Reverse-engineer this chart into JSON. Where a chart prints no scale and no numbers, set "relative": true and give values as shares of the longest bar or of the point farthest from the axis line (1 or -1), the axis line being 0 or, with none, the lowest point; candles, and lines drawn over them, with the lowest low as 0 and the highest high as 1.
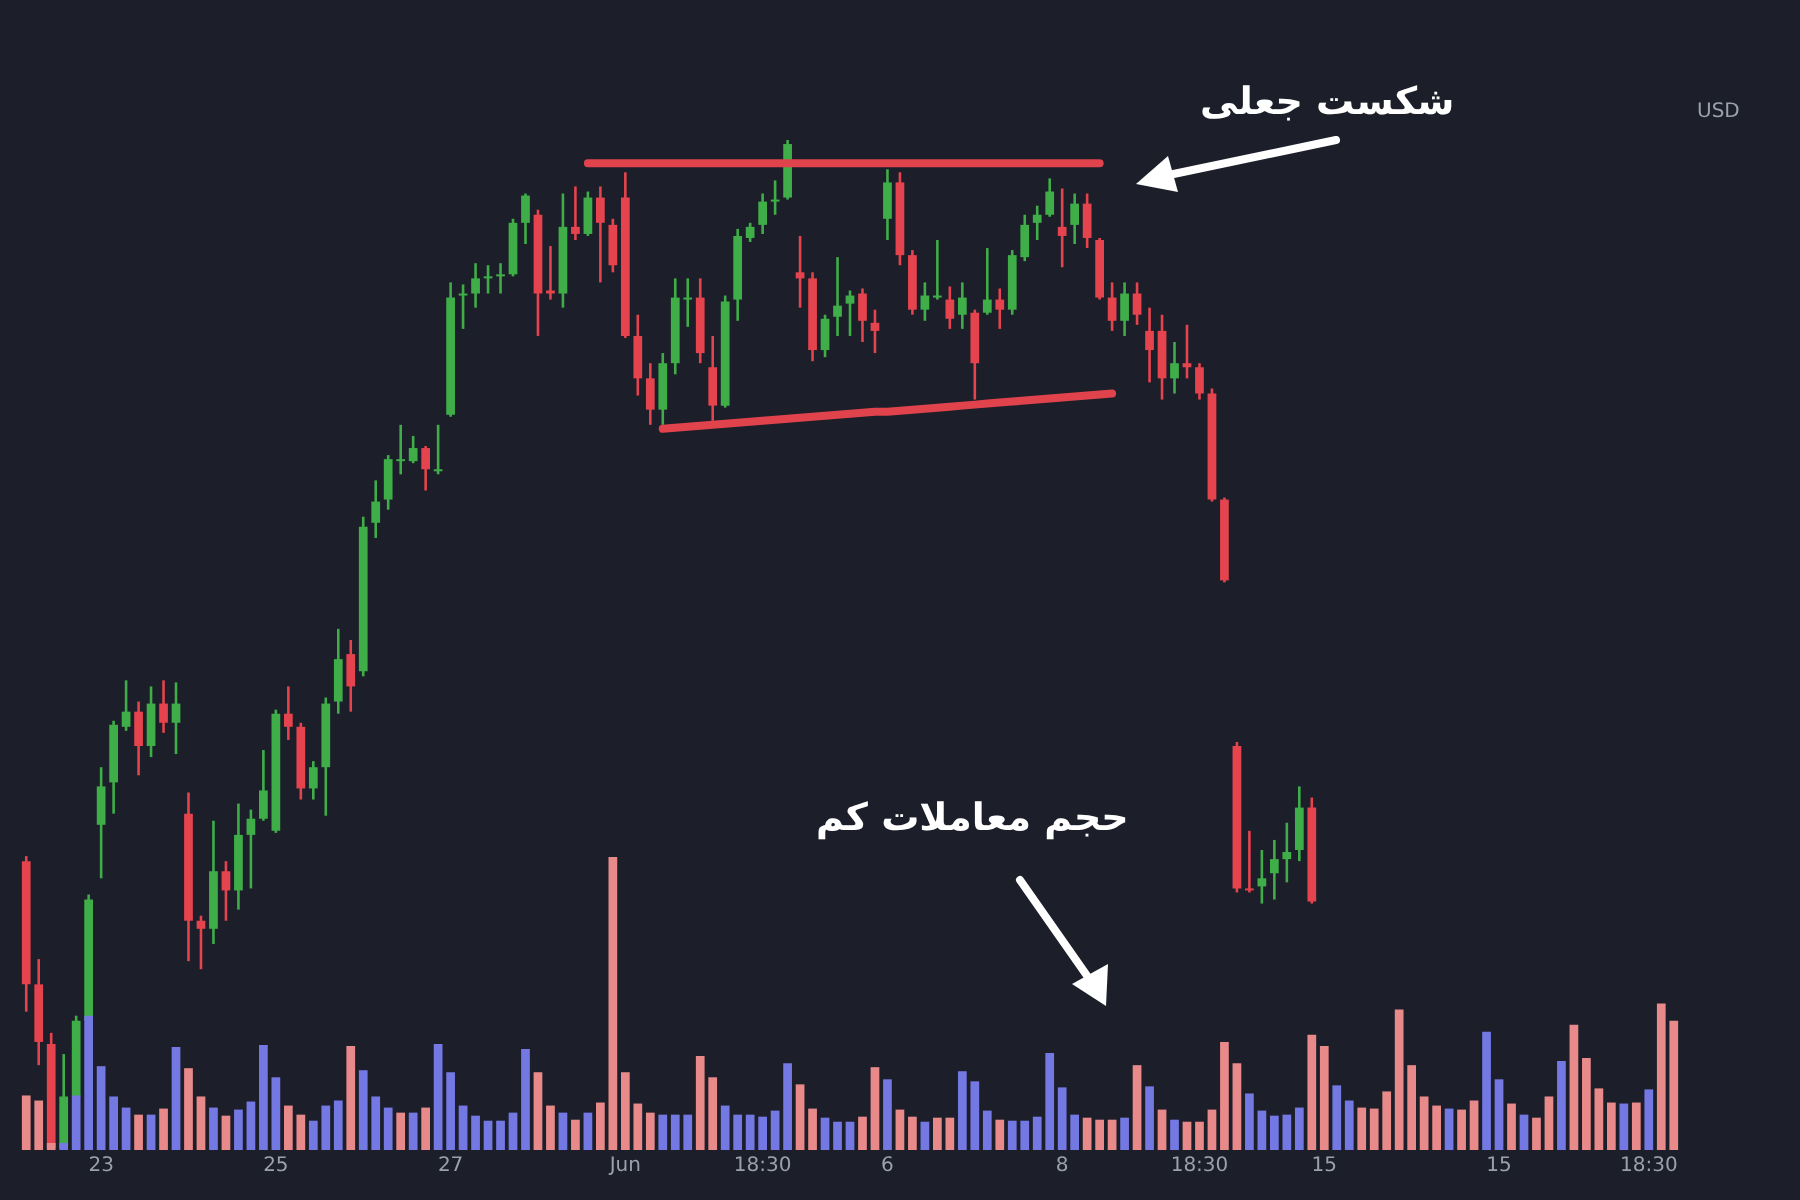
{
  "chart_data": {
    "type": "candlestick",
    "relative": true,
    "ylabel": "USD",
    "categories": [
      null,
      null,
      null,
      null,
      null,
      null,
      "23",
      null,
      null,
      null,
      null,
      null,
      null,
      null,
      null,
      null,
      null,
      null,
      null,
      null,
      "25",
      null,
      null,
      null,
      null,
      null,
      null,
      null,
      null,
      null,
      null,
      null,
      null,
      null,
      "27",
      null,
      null,
      null,
      null,
      null,
      null,
      null,
      null,
      null,
      null,
      null,
      null,
      null,
      "Jun",
      null,
      null,
      null,
      null,
      null,
      null,
      null,
      null,
      null,
      null,
      "18:30",
      null,
      null,
      null,
      null,
      null,
      null,
      null,
      null,
      null,
      "6",
      null,
      null,
      null,
      null,
      null,
      null,
      null,
      null,
      null,
      null,
      null,
      null,
      null,
      "8",
      null,
      null,
      null,
      null,
      null,
      null,
      null,
      null,
      null,
      null,
      "18:30",
      null,
      null,
      null,
      null,
      null,
      null,
      null,
      null,
      null,
      "15",
      null,
      null,
      null,
      null,
      null,
      null,
      null,
      null,
      null,
      null,
      null,
      null,
      null,
      "15",
      null,
      null,
      null,
      null,
      null,
      null,
      null,
      null,
      null,
      null,
      null,
      "18:30",
      null,
      null
    ],
    "ohlc": [
      [
        0.286,
        0.291,
        0.137,
        0.164
      ],
      [
        0.164,
        0.189,
        0.084,
        0.107
      ],
      [
        0.105,
        0.116,
        0,
        0.002
      ],
      [
        0.002,
        0.095,
        0,
        0.053
      ],
      [
        0.053,
        0.133,
        0.048,
        0.128
      ],
      [
        0.128,
        0.253,
        0.126,
        0.248
      ],
      [
        0.322,
        0.379,
        0.269,
        0.36
      ],
      [
        0.364,
        0.425,
        0.333,
        0.421
      ],
      [
        0.419,
        0.465,
        0.415,
        0.434
      ],
      [
        0.434,
        0.444,
        0.371,
        0.4
      ],
      [
        0.4,
        0.459,
        0.389,
        0.442
      ],
      [
        0.442,
        0.465,
        0.413,
        0.423
      ],
      [
        0.423,
        0.463,
        0.392,
        0.442
      ],
      [
        0.333,
        0.354,
        0.187,
        0.227
      ],
      [
        0.227,
        0.232,
        0.179,
        0.219
      ],
      [
        0.219,
        0.326,
        0.204,
        0.276
      ],
      [
        0.276,
        0.286,
        0.227,
        0.257
      ],
      [
        0.257,
        0.343,
        0.238,
        0.312
      ],
      [
        0.312,
        0.337,
        0.259,
        0.328
      ],
      [
        0.328,
        0.396,
        0.326,
        0.356
      ],
      [
        0.316,
        0.436,
        0.314,
        0.432
      ],
      [
        0.432,
        0.459,
        0.406,
        0.419
      ],
      [
        0.419,
        0.423,
        0.347,
        0.358
      ],
      [
        0.358,
        0.385,
        0.347,
        0.379
      ],
      [
        0.379,
        0.448,
        0.331,
        0.442
      ],
      [
        0.444,
        0.516,
        0.432,
        0.486
      ],
      [
        0.491,
        0.505,
        0.434,
        0.459
      ],
      [
        0.474,
        0.627,
        0.469,
        0.617
      ],
      [
        0.621,
        0.663,
        0.606,
        0.642
      ],
      [
        0.644,
        0.688,
        0.634,
        0.684
      ],
      [
        0.682,
        0.718,
        0.669,
        0.684
      ],
      [
        0.682,
        0.707,
        0.68,
        0.695
      ],
      [
        0.695,
        0.697,
        0.653,
        0.674
      ],
      [
        0.672,
        0.718,
        0.669,
        0.674
      ],
      [
        0.728,
        0.859,
        0.726,
        0.844
      ],
      [
        0.846,
        0.857,
        0.813,
        0.848
      ],
      [
        0.848,
        0.878,
        0.834,
        0.863
      ],
      [
        0.863,
        0.876,
        0.848,
        0.865
      ],
      [
        0.865,
        0.878,
        0.848,
        0.867
      ],
      [
        0.867,
        0.922,
        0.865,
        0.918
      ],
      [
        0.918,
        0.947,
        0.897,
        0.945
      ],
      [
        0.926,
        0.931,
        0.806,
        0.848
      ],
      [
        0.851,
        0.895,
        0.842,
        0.848
      ],
      [
        0.848,
        0.947,
        0.834,
        0.914
      ],
      [
        0.914,
        0.954,
        0.901,
        0.907
      ],
      [
        0.907,
        0.949,
        0.905,
        0.943
      ],
      [
        0.943,
        0.954,
        0.859,
        0.918
      ],
      [
        0.916,
        0.922,
        0.869,
        0.876
      ],
      [
        0.943,
        0.968,
        0.804,
        0.806
      ],
      [
        0.806,
        0.827,
        0.747,
        0.764
      ],
      [
        0.764,
        0.779,
        0.718,
        0.733
      ],
      [
        0.733,
        0.789,
        0.718,
        0.779
      ],
      [
        0.779,
        0.863,
        0.768,
        0.844
      ],
      [
        0.842,
        0.863,
        0.815,
        0.844
      ],
      [
        0.844,
        0.863,
        0.779,
        0.789
      ],
      [
        0.775,
        0.806,
        0.722,
        0.737
      ],
      [
        0.737,
        0.846,
        0.735,
        0.84
      ],
      [
        0.842,
        0.912,
        0.821,
        0.905
      ],
      [
        0.903,
        0.918,
        0.899,
        0.914
      ],
      [
        0.916,
        0.947,
        0.907,
        0.939
      ],
      [
        0.939,
        0.96,
        0.926,
        0.941
      ],
      [
        0.943,
        1,
        0.941,
        0.996
      ],
      [
        0.869,
        0.905,
        0.834,
        0.863
      ],
      [
        0.863,
        0.869,
        0.781,
        0.792
      ],
      [
        0.792,
        0.827,
        0.785,
        0.823
      ],
      [
        0.825,
        0.884,
        0.806,
        0.836
      ],
      [
        0.838,
        0.851,
        0.806,
        0.846
      ],
      [
        0.848,
        0.853,
        0.8,
        0.821
      ],
      [
        0.819,
        0.832,
        0.789,
        0.811
      ],
      [
        0.922,
        0.971,
        0.901,
        0.958
      ],
      [
        0.958,
        0.968,
        0.876,
        0.886
      ],
      [
        0.886,
        0.891,
        0.827,
        0.832
      ],
      [
        0.832,
        0.859,
        0.821,
        0.846
      ],
      [
        0.844,
        0.901,
        0.842,
        0.846
      ],
      [
        0.842,
        0.855,
        0.813,
        0.823
      ],
      [
        0.827,
        0.859,
        0.813,
        0.844
      ],
      [
        0.829,
        0.832,
        0.743,
        0.779
      ],
      [
        0.829,
        0.893,
        0.827,
        0.842
      ],
      [
        0.842,
        0.853,
        0.813,
        0.832
      ],
      [
        0.832,
        0.891,
        0.827,
        0.886
      ],
      [
        0.884,
        0.926,
        0.88,
        0.916
      ],
      [
        0.918,
        0.935,
        0.901,
        0.926
      ],
      [
        0.926,
        0.962,
        0.924,
        0.949
      ],
      [
        0.914,
        0.952,
        0.874,
        0.905
      ],
      [
        0.916,
        0.947,
        0.897,
        0.937
      ],
      [
        0.937,
        0.947,
        0.893,
        0.903
      ],
      [
        0.901,
        0.903,
        0.842,
        0.844
      ],
      [
        0.844,
        0.859,
        0.811,
        0.821
      ],
      [
        0.821,
        0.859,
        0.806,
        0.848
      ],
      [
        0.848,
        0.859,
        0.817,
        0.827
      ],
      [
        0.811,
        0.834,
        0.76,
        0.792
      ],
      [
        0.811,
        0.827,
        0.743,
        0.764
      ],
      [
        0.764,
        0.8,
        0.749,
        0.779
      ],
      [
        0.779,
        0.817,
        0.764,
        0.775
      ],
      [
        0.775,
        0.779,
        0.743,
        0.749
      ],
      [
        0.749,
        0.754,
        0.642,
        0.644
      ],
      [
        0.644,
        0.646,
        0.562,
        0.564
      ],
      [
        0.4,
        0.404,
        0.255,
        0.259
      ],
      [
        0.259,
        0.316,
        0.255,
        0.257
      ],
      [
        0.261,
        0.297,
        0.244,
        0.269
      ],
      [
        0.274,
        0.307,
        0.248,
        0.288
      ],
      [
        0.288,
        0.324,
        0.265,
        0.295
      ],
      [
        0.297,
        0.36,
        0.286,
        0.339
      ],
      [
        0.339,
        0.349,
        0.244,
        0.246
      ],
      null,
      null,
      null,
      null,
      null,
      null,
      null,
      null,
      null,
      null,
      null,
      null,
      null,
      null,
      null,
      null,
      null,
      null,
      null,
      null,
      null,
      null,
      null,
      null,
      null,
      null,
      null,
      null,
      null
    ],
    "colors": [
      "#e5434d",
      "#e5434d",
      "#e5434d",
      "#3fae49",
      "#3fae49",
      "#3fae49",
      "#3fae49",
      "#3fae49",
      "#3fae49",
      "#e5434d",
      "#3fae49",
      "#e5434d",
      "#3fae49",
      "#e5434d",
      "#e5434d",
      "#3fae49",
      "#e5434d",
      "#3fae49",
      "#3fae49",
      "#3fae49",
      "#3fae49",
      "#e5434d",
      "#e5434d",
      "#3fae49",
      "#3fae49",
      "#3fae49",
      "#e5434d",
      "#3fae49",
      "#3fae49",
      "#3fae49",
      "#3fae49",
      "#3fae49",
      "#e5434d",
      "#3fae49",
      "#3fae49",
      "#3fae49",
      "#3fae49",
      "#3fae49",
      "#3fae49",
      "#3fae49",
      "#3fae49",
      "#e5434d",
      "#e5434d",
      "#3fae49",
      "#e5434d",
      "#3fae49",
      "#e5434d",
      "#e5434d",
      "#e5434d",
      "#e5434d",
      "#e5434d",
      "#3fae49",
      "#3fae49",
      "#3fae49",
      "#e5434d",
      "#e5434d",
      "#3fae49",
      "#3fae49",
      "#3fae49",
      "#3fae49",
      "#3fae49",
      "#3fae49",
      "#e5434d",
      "#e5434d",
      "#3fae49",
      "#3fae49",
      "#3fae49",
      "#e5434d",
      "#e5434d",
      "#3fae49",
      "#e5434d",
      "#e5434d",
      "#3fae49",
      "#3fae49",
      "#e5434d",
      "#3fae49",
      "#e5434d",
      "#3fae49",
      "#e5434d",
      "#3fae49",
      "#3fae49",
      "#3fae49",
      "#3fae49",
      "#e5434d",
      "#3fae49",
      "#e5434d",
      "#e5434d",
      "#e5434d",
      "#3fae49",
      "#e5434d",
      "#e5434d",
      "#e5434d",
      "#3fae49",
      "#e5434d",
      "#e5434d",
      "#e5434d",
      "#e5434d",
      "#e5434d",
      "#e5434d",
      "#3fae49",
      "#3fae49",
      "#3fae49",
      "#3fae49",
      "#e5434d",
      null,
      null,
      null,
      null,
      null,
      null,
      null,
      null,
      null,
      null,
      null,
      null,
      null,
      null,
      null,
      null,
      null,
      null,
      null,
      null,
      null,
      null,
      null,
      null,
      null,
      null,
      null,
      null,
      null
    ],
    "series": [
      {
        "type": "bar",
        "values": [
          0.054,
          0.049,
          0.007,
          0.007,
          0.054,
          0.133,
          0.083,
          0.053,
          0.042,
          0.035,
          0.035,
          0.041,
          0.102,
          0.081,
          0.053,
          0.042,
          0.034,
          0.04,
          0.048,
          0.104,
          0.072,
          0.044,
          0.035,
          0.029,
          0.044,
          0.049,
          0.103,
          0.079,
          0.053,
          0.042,
          0.037,
          0.037,
          0.042,
          0.105,
          0.077,
          0.044,
          0.034,
          0.029,
          0.029,
          0.037,
          0.1,
          0.077,
          0.044,
          0.037,
          0.03,
          0.037,
          0.047,
          0.29,
          0.077,
          0.046,
          0.037,
          0.035,
          0.035,
          0.035,
          0.093,
          0.072,
          0.044,
          0.035,
          0.035,
          0.033,
          0.039,
          0.086,
          0.065,
          0.041,
          0.032,
          0.028,
          0.028,
          0.033,
          0.082,
          0.07,
          0.04,
          0.033,
          0.028,
          0.032,
          0.032,
          0.078,
          0.068,
          0.039,
          0.03,
          0.029,
          0.029,
          0.033,
          0.096,
          0.062,
          0.035,
          0.032,
          0.03,
          0.03,
          0.032,
          0.084,
          0.063,
          0.04,
          0.03,
          0.028,
          0.028,
          0.04,
          0.107,
          0.086,
          0.056,
          0.039,
          0.034,
          0.035,
          0.042,
          0.114,
          0.103,
          0.064,
          0.049,
          0.042,
          0.041,
          0.058,
          0.139,
          0.084,
          0.053,
          0.044,
          0.041,
          0.04,
          0.049,
          0.117,
          0.07,
          0.046,
          0.035,
          0.032,
          0.053,
          0.088,
          0.124,
          0.091,
          0.061,
          0.047,
          0.046,
          0.047,
          0.06,
          0.145,
          0.128
        ],
        "colors": [
          "#e8898a",
          "#e8898a",
          "#e8898a",
          "#7478e3",
          "#7478e3",
          "#7478e3",
          "#7478e3",
          "#7478e3",
          "#7478e3",
          "#e8898a",
          "#7478e3",
          "#e8898a",
          "#7478e3",
          "#e8898a",
          "#e8898a",
          "#7478e3",
          "#e8898a",
          "#7478e3",
          "#7478e3",
          "#7478e3",
          "#7478e3",
          "#e8898a",
          "#e8898a",
          "#7478e3",
          "#7478e3",
          "#7478e3",
          "#e8898a",
          "#7478e3",
          "#7478e3",
          "#7478e3",
          "#e8898a",
          "#7478e3",
          "#e8898a",
          "#7478e3",
          "#7478e3",
          "#7478e3",
          "#7478e3",
          "#7478e3",
          "#7478e3",
          "#7478e3",
          "#7478e3",
          "#e8898a",
          "#e8898a",
          "#7478e3",
          "#e8898a",
          "#7478e3",
          "#e8898a",
          "#e8898a",
          "#e8898a",
          "#e8898a",
          "#e8898a",
          "#7478e3",
          "#7478e3",
          "#7478e3",
          "#e8898a",
          "#e8898a",
          "#7478e3",
          "#7478e3",
          "#7478e3",
          "#7478e3",
          "#7478e3",
          "#7478e3",
          "#e8898a",
          "#e8898a",
          "#7478e3",
          "#7478e3",
          "#7478e3",
          "#e8898a",
          "#e8898a",
          "#7478e3",
          "#e8898a",
          "#e8898a",
          "#7478e3",
          "#e8898a",
          "#e8898a",
          "#7478e3",
          "#7478e3",
          "#7478e3",
          "#e8898a",
          "#7478e3",
          "#7478e3",
          "#7478e3",
          "#7478e3",
          "#7478e3",
          "#7478e3",
          "#e8898a",
          "#e8898a",
          "#e8898a",
          "#7478e3",
          "#e8898a",
          "#7478e3",
          "#e8898a",
          "#7478e3",
          "#e8898a",
          "#e8898a",
          "#e8898a",
          "#e8898a",
          "#e8898a",
          "#7478e3",
          "#7478e3",
          "#7478e3",
          "#7478e3",
          "#7478e3",
          "#e8898a",
          "#e8898a",
          "#7478e3",
          "#7478e3",
          "#e8898a",
          "#e8898a",
          "#e8898a",
          "#e8898a",
          "#e8898a",
          "#e8898a",
          "#e8898a",
          "#7478e3",
          "#e8898a",
          "#e8898a",
          "#7478e3",
          "#7478e3",
          "#e8898a",
          "#7478e3",
          "#e8898a",
          "#e8898a",
          "#7478e3",
          "#e8898a",
          "#e8898a",
          "#e8898a",
          "#e8898a",
          "#7478e3",
          "#e8898a",
          "#7478e3",
          "#e8898a",
          "#e8898a"
        ]
      },
      {
        "type": "line",
        "color": "#e0434c",
        "values": [
          null,
          null,
          null,
          null,
          null,
          null,
          null,
          null,
          null,
          null,
          null,
          null,
          null,
          null,
          null,
          null,
          null,
          null,
          null,
          null,
          null,
          null,
          null,
          null,
          null,
          null,
          null,
          null,
          null,
          null,
          null,
          null,
          null,
          null,
          null,
          null,
          null,
          null,
          null,
          null,
          null,
          null,
          null,
          null,
          null,
          0.977,
          0.977,
          0.977,
          0.977,
          0.977,
          0.977,
          0.977,
          0.977,
          0.977,
          0.977,
          0.977,
          0.977,
          0.977,
          0.977,
          0.977,
          0.977,
          0.977,
          0.977,
          0.977,
          0.977,
          0.977,
          0.977,
          0.977,
          0.977,
          0.977,
          0.977,
          0.977,
          0.977,
          0.977,
          0.977,
          0.977,
          0.977,
          0.977,
          0.977,
          0.977,
          0.977,
          0.977,
          0.977,
          0.977,
          0.977,
          0.977,
          0.977,
          null,
          null,
          null,
          null,
          null,
          null,
          null,
          null,
          null,
          null,
          null,
          null,
          null,
          null,
          null,
          null,
          null,
          null,
          null,
          null,
          null,
          null,
          null,
          null,
          null,
          null,
          null,
          null,
          null,
          null,
          null,
          null,
          null,
          null,
          null,
          null,
          null,
          null,
          null,
          null,
          null,
          null,
          null,
          null,
          null,
          null
        ]
      },
      {
        "type": "line",
        "color": "#e0434c",
        "values": [
          null,
          null,
          null,
          null,
          null,
          null,
          null,
          null,
          null,
          null,
          null,
          null,
          null,
          null,
          null,
          null,
          null,
          null,
          null,
          null,
          null,
          null,
          null,
          null,
          null,
          null,
          null,
          null,
          null,
          null,
          null,
          null,
          null,
          null,
          null,
          null,
          null,
          null,
          null,
          null,
          null,
          null,
          null,
          null,
          null,
          null,
          null,
          null,
          null,
          null,
          null,
          0.714,
          0.715,
          0.716,
          0.717,
          0.718,
          0.719,
          0.72,
          0.721,
          0.722,
          0.723,
          0.724,
          0.725,
          0.726,
          0.727,
          0.728,
          0.729,
          0.73,
          0.731,
          0.731,
          0.732,
          0.733,
          0.734,
          0.735,
          0.736,
          0.737,
          0.738,
          0.739,
          0.74,
          0.741,
          0.742,
          0.743,
          0.744,
          0.745,
          0.746,
          0.747,
          0.748,
          0.749,
          null,
          null,
          null,
          null,
          null,
          null,
          null,
          null,
          null,
          null,
          null,
          null,
          null,
          null,
          null,
          null,
          null,
          null,
          null,
          null,
          null,
          null,
          null,
          null,
          null,
          null,
          null,
          null,
          null,
          null,
          null,
          null,
          null,
          null,
          null,
          null,
          null,
          null,
          null,
          null,
          null,
          null,
          null,
          null,
          null
        ]
      }
    ],
    "annotations": [
      "شکست جعلی",
      "حجم معاملات کم"
    ]
  }
}
